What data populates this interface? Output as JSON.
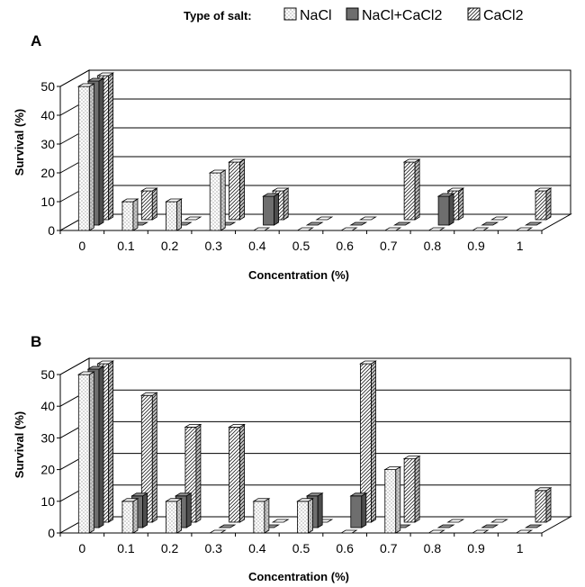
{
  "legend": {
    "title": "Type of salt:",
    "items": [
      {
        "name": "NaCl",
        "pattern": "dots"
      },
      {
        "name": "NaCl+CaCl2",
        "pattern": "solid"
      },
      {
        "name": "CaCl2",
        "pattern": "hatch"
      }
    ]
  },
  "colors": {
    "nacl_fill": "#ffffff",
    "mix_fill": "#6e6e6e",
    "cacl2_fill": "#ffffff",
    "grid": "#000000"
  },
  "chart_data": [
    {
      "type": "bar",
      "panel_label": "A",
      "xlabel": "Concentration (%)",
      "ylabel": "Survival (%)",
      "ylim": [
        0,
        50
      ],
      "yticks": [
        "0",
        "10",
        "20",
        "30",
        "40",
        "50"
      ],
      "grid": true,
      "categories": [
        "0",
        "0.1",
        "0.2",
        "0.3",
        "0.4",
        "0.5",
        "0.6",
        "0.7",
        "0.8",
        "0.9",
        "1"
      ],
      "series": [
        {
          "name": "NaCl",
          "values": [
            50,
            10,
            10,
            20,
            0,
            0,
            0,
            0,
            0,
            0,
            0
          ]
        },
        {
          "name": "NaCl+CaCl2",
          "values": [
            50,
            0,
            0,
            0,
            10,
            0,
            0,
            0,
            10,
            0,
            0
          ]
        },
        {
          "name": "CaCl2",
          "values": [
            50,
            10,
            0,
            20,
            10,
            0,
            0,
            20,
            10,
            0,
            10
          ]
        }
      ]
    },
    {
      "type": "bar",
      "panel_label": "B",
      "xlabel": "Concentration (%)",
      "ylabel": "Survival (%)",
      "ylim": [
        0,
        50
      ],
      "yticks": [
        "0",
        "10",
        "20",
        "30",
        "40",
        "50"
      ],
      "grid": true,
      "categories": [
        "0",
        "0.1",
        "0.2",
        "0.3",
        "0.4",
        "0.5",
        "0.6",
        "0.7",
        "0.8",
        "0.9",
        "1"
      ],
      "series": [
        {
          "name": "NaCl",
          "values": [
            50,
            10,
            10,
            0,
            10,
            10,
            0,
            20,
            0,
            0,
            0
          ]
        },
        {
          "name": "NaCl+CaCl2",
          "values": [
            50,
            10,
            10,
            0,
            0,
            10,
            10,
            0,
            0,
            0,
            0
          ]
        },
        {
          "name": "CaCl2",
          "values": [
            50,
            40,
            30,
            30,
            0,
            0,
            50,
            20,
            0,
            0,
            10
          ]
        }
      ]
    }
  ]
}
